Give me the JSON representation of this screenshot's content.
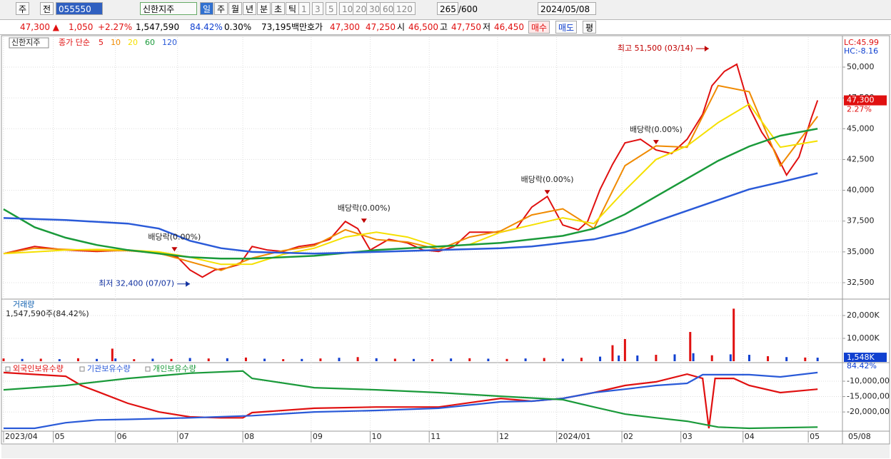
{
  "toolbar": {
    "period_type": "주",
    "prev": "전",
    "code": "055550",
    "name": "신한지주",
    "intervals": [
      "일",
      "주",
      "월",
      "년",
      "분",
      "초",
      "틱"
    ],
    "units": [
      "1",
      "3",
      "5",
      "10",
      "20",
      "30",
      "60",
      "120"
    ],
    "count": "265",
    "max": "/600",
    "date": "2024/05/08"
  },
  "quote_bar": {
    "price": "47,300 ▲",
    "change": "1,050",
    "rate": "+2.27%",
    "volume": "1,547,590",
    "volume_ratio": "84.42%",
    "turnover_ratio": "0.30%",
    "amount": "73,195백만",
    "ask_label": "호가",
    "ask": "47,300",
    "bid": "47,250",
    "open_label": "시",
    "open": "46,500",
    "high_label": "고",
    "high": "47,750",
    "low_label": "저",
    "low": "46,450",
    "buy": "매수",
    "sell": "매도",
    "avg": "평"
  },
  "chart_data": [
    {
      "type": "line",
      "name_label": "신한지주",
      "legend_title": "종가 단순",
      "lc_label": "LC:45.99",
      "hc_label": "HC:-8.16",
      "xlim": [
        0,
        270
      ],
      "xticks": [
        {
          "value": 0,
          "label": "2023/04"
        },
        {
          "value": 16,
          "label": "05"
        },
        {
          "value": 36,
          "label": "06"
        },
        {
          "value": 56,
          "label": "07"
        },
        {
          "value": 77,
          "label": "08"
        },
        {
          "value": 99,
          "label": "09"
        },
        {
          "value": 118,
          "label": "10"
        },
        {
          "value": 137,
          "label": "11"
        },
        {
          "value": 159,
          "label": "12"
        },
        {
          "value": 178,
          "label": "2024/01"
        },
        {
          "value": 199,
          "label": "02"
        },
        {
          "value": 218,
          "label": "03"
        },
        {
          "value": 238,
          "label": "04"
        },
        {
          "value": 259,
          "label": "05"
        }
      ],
      "end_label": "05/08",
      "ylim": [
        31225,
        52260
      ],
      "yticks": [
        {
          "value": 32500,
          "label": "32,500"
        },
        {
          "value": 35000,
          "label": "35,000"
        },
        {
          "value": 37500,
          "label": "37,500"
        },
        {
          "value": 40000,
          "label": "40,000"
        },
        {
          "value": 42500,
          "label": "42,500"
        },
        {
          "value": 45000,
          "label": "45,000"
        },
        {
          "value": 47500,
          "label": "47,500"
        },
        {
          "value": 50000,
          "label": "50,000"
        }
      ],
      "grid": true,
      "series": [
        {
          "name": "5",
          "color": "#e01010",
          "x": [
            0,
            10,
            20,
            30,
            40,
            50,
            56,
            60,
            64,
            68,
            72,
            76,
            80,
            85,
            90,
            95,
            100,
            105,
            110,
            114,
            118,
            124,
            130,
            135,
            140,
            145,
            150,
            155,
            160,
            165,
            170,
            175,
            180,
            185,
            188,
            192,
            196,
            200,
            205,
            210,
            215,
            220,
            225,
            228,
            232,
            236,
            240,
            244,
            248,
            252,
            256,
            260,
            262
          ],
          "values": [
            34860,
            35440,
            35150,
            35040,
            35150,
            34860,
            34570,
            33530,
            32950,
            33530,
            33700,
            33990,
            35440,
            35150,
            35040,
            35440,
            35620,
            36020,
            37470,
            36890,
            35150,
            36020,
            35730,
            35150,
            35040,
            35440,
            36600,
            36600,
            36600,
            36890,
            38630,
            39500,
            37180,
            36780,
            37470,
            40080,
            42110,
            43850,
            44140,
            43270,
            42980,
            44140,
            46170,
            48490,
            49650,
            50230,
            46750,
            44720,
            43270,
            41240,
            42690,
            45880,
            47300
          ]
        },
        {
          "name": "10",
          "color": "#f08a00",
          "x": [
            0,
            10,
            20,
            30,
            40,
            50,
            60,
            70,
            80,
            90,
            100,
            110,
            120,
            130,
            140,
            150,
            160,
            170,
            180,
            190,
            200,
            210,
            220,
            230,
            240,
            250,
            262
          ],
          "values": [
            34860,
            35300,
            35200,
            35100,
            35100,
            34900,
            34200,
            33500,
            34500,
            35100,
            35500,
            36800,
            36000,
            35800,
            35200,
            36200,
            36700,
            38000,
            38500,
            36900,
            42000,
            43600,
            43500,
            48500,
            48000,
            42000,
            46000
          ]
        },
        {
          "name": "20",
          "color": "#f5e000",
          "x": [
            0,
            10,
            20,
            30,
            40,
            50,
            60,
            70,
            80,
            90,
            100,
            110,
            120,
            130,
            140,
            150,
            160,
            170,
            180,
            190,
            200,
            210,
            220,
            230,
            240,
            250,
            262
          ],
          "values": [
            34860,
            35000,
            35150,
            35200,
            35150,
            35000,
            34570,
            33990,
            34000,
            34800,
            35300,
            36200,
            36600,
            36200,
            35400,
            35600,
            36600,
            37180,
            37760,
            37300,
            40000,
            42500,
            43600,
            45500,
            47000,
            43500,
            44000
          ]
        },
        {
          "name": "60",
          "color": "#1a9a3a",
          "x": [
            0,
            10,
            20,
            30,
            40,
            50,
            60,
            70,
            80,
            100,
            120,
            140,
            160,
            170,
            180,
            190,
            200,
            210,
            220,
            230,
            240,
            250,
            262
          ],
          "values": [
            38460,
            37000,
            36150,
            35560,
            35150,
            34860,
            34570,
            34450,
            34450,
            34680,
            35150,
            35440,
            35730,
            36020,
            36300,
            36890,
            38050,
            39500,
            40950,
            42400,
            43560,
            44430,
            45000
          ]
        },
        {
          "name": "120",
          "color": "#2a5ad8",
          "x": [
            0,
            20,
            40,
            50,
            60,
            70,
            80,
            100,
            120,
            140,
            160,
            170,
            180,
            190,
            200,
            210,
            220,
            230,
            240,
            250,
            262
          ],
          "values": [
            37750,
            37580,
            37300,
            36890,
            35900,
            35300,
            35000,
            34860,
            35000,
            35150,
            35300,
            35440,
            35730,
            36020,
            36600,
            37470,
            38340,
            39210,
            40080,
            40660,
            41390
          ]
        }
      ],
      "last_value": 47300,
      "last_value_label": "47,300",
      "change_label": "2.27%",
      "annotations": [
        {
          "text": "최고 51,500 (03/14)",
          "x": 227,
          "y": 51500,
          "kind": "high"
        },
        {
          "text": "최저 32,400 (07/07)",
          "x": 60,
          "y": 32400,
          "kind": "low"
        },
        {
          "text": "배당락(0.00%)",
          "x": 55,
          "y": 35150,
          "kind": "mark"
        },
        {
          "text": "배당락(0.00%)",
          "x": 116,
          "y": 37470,
          "kind": "mark"
        },
        {
          "text": "배당락(0.00%)",
          "x": 175,
          "y": 39790,
          "kind": "mark"
        },
        {
          "text": "배당락(0.00%)",
          "x": 210,
          "y": 43850,
          "kind": "mark"
        }
      ]
    },
    {
      "type": "bar",
      "title": "거래량",
      "subtitle": "1,547,590주(84.42%)",
      "ylim": [
        0,
        26250
      ],
      "yticks": [
        {
          "value": 10000,
          "label": "10,000K"
        },
        {
          "value": 20000,
          "label": "20,000K"
        }
      ],
      "x": [
        0,
        6,
        12,
        18,
        24,
        30,
        35,
        36,
        42,
        48,
        54,
        60,
        66,
        72,
        78,
        84,
        90,
        96,
        102,
        108,
        114,
        120,
        126,
        132,
        138,
        144,
        150,
        156,
        162,
        168,
        174,
        180,
        186,
        192,
        196,
        198,
        200,
        204,
        210,
        216,
        221,
        222,
        228,
        234,
        235,
        240,
        246,
        252,
        258,
        262
      ],
      "values": [
        1200,
        1000,
        1100,
        900,
        1300,
        1000,
        5500,
        1200,
        900,
        1100,
        1000,
        1400,
        1200,
        1300,
        1600,
        1100,
        900,
        1000,
        1200,
        1500,
        1800,
        1300,
        1100,
        1000,
        900,
        1200,
        1300,
        1100,
        1000,
        1200,
        1400,
        1100,
        1500,
        2000,
        7000,
        2500,
        9700,
        2500,
        2800,
        3000,
        12800,
        3500,
        2600,
        3000,
        23000,
        2800,
        2200,
        1800,
        1600,
        1548
      ],
      "colors": [
        "#e01010",
        "#1040d0"
      ],
      "last_value": 1548,
      "last_value_label": "1,548K",
      "last_ratio_label": "84.42%"
    },
    {
      "type": "line",
      "ylim": [
        -26000000,
        -4900000
      ],
      "yticks": [
        {
          "value": -10000000,
          "label": "-10,000,00"
        },
        {
          "value": -15000000,
          "label": "-15,000,00"
        },
        {
          "value": -20000000,
          "label": "-20,000,00"
        }
      ],
      "series": [
        {
          "name": "외국인보유수량",
          "color": "#e01010",
          "x": [
            0,
            20,
            25,
            30,
            40,
            50,
            60,
            70,
            77,
            80,
            100,
            120,
            140,
            160,
            170,
            180,
            190,
            200,
            210,
            220,
            225,
            227,
            229,
            235,
            240,
            250,
            262
          ],
          "values": [
            -7200000,
            -8400000,
            -11400000,
            -13300000,
            -17200000,
            -20000000,
            -21600000,
            -21900000,
            -21900000,
            -20200000,
            -18800000,
            -18400000,
            -18400000,
            -15600000,
            -16500000,
            -15600000,
            -13700000,
            -11400000,
            -10200000,
            -7700000,
            -9100000,
            -25300000,
            -9100000,
            -9100000,
            -11400000,
            -13700000,
            -12600000
          ]
        },
        {
          "name": "기관보유수량",
          "color": "#2a5ad8",
          "x": [
            0,
            10,
            20,
            30,
            40,
            60,
            80,
            100,
            120,
            140,
            160,
            170,
            180,
            190,
            200,
            210,
            220,
            225,
            240,
            250,
            262
          ],
          "values": [
            -25300000,
            -25300000,
            -23500000,
            -22600000,
            -22400000,
            -21900000,
            -21200000,
            -20000000,
            -19500000,
            -18800000,
            -16700000,
            -16500000,
            -15600000,
            -13700000,
            -12600000,
            -11400000,
            -10700000,
            -7900000,
            -7900000,
            -8600000,
            -7200000
          ]
        },
        {
          "name": "개인보유수량",
          "color": "#1a9a3a",
          "x": [
            0,
            20,
            40,
            60,
            77,
            80,
            100,
            120,
            140,
            160,
            180,
            190,
            200,
            210,
            220,
            230,
            240,
            262
          ],
          "values": [
            -12800000,
            -11400000,
            -9100000,
            -7400000,
            -6700000,
            -9100000,
            -12100000,
            -12800000,
            -13700000,
            -14900000,
            -16000000,
            -18400000,
            -20700000,
            -21900000,
            -23000000,
            -24900000,
            -25300000,
            -24900000
          ]
        }
      ]
    }
  ]
}
